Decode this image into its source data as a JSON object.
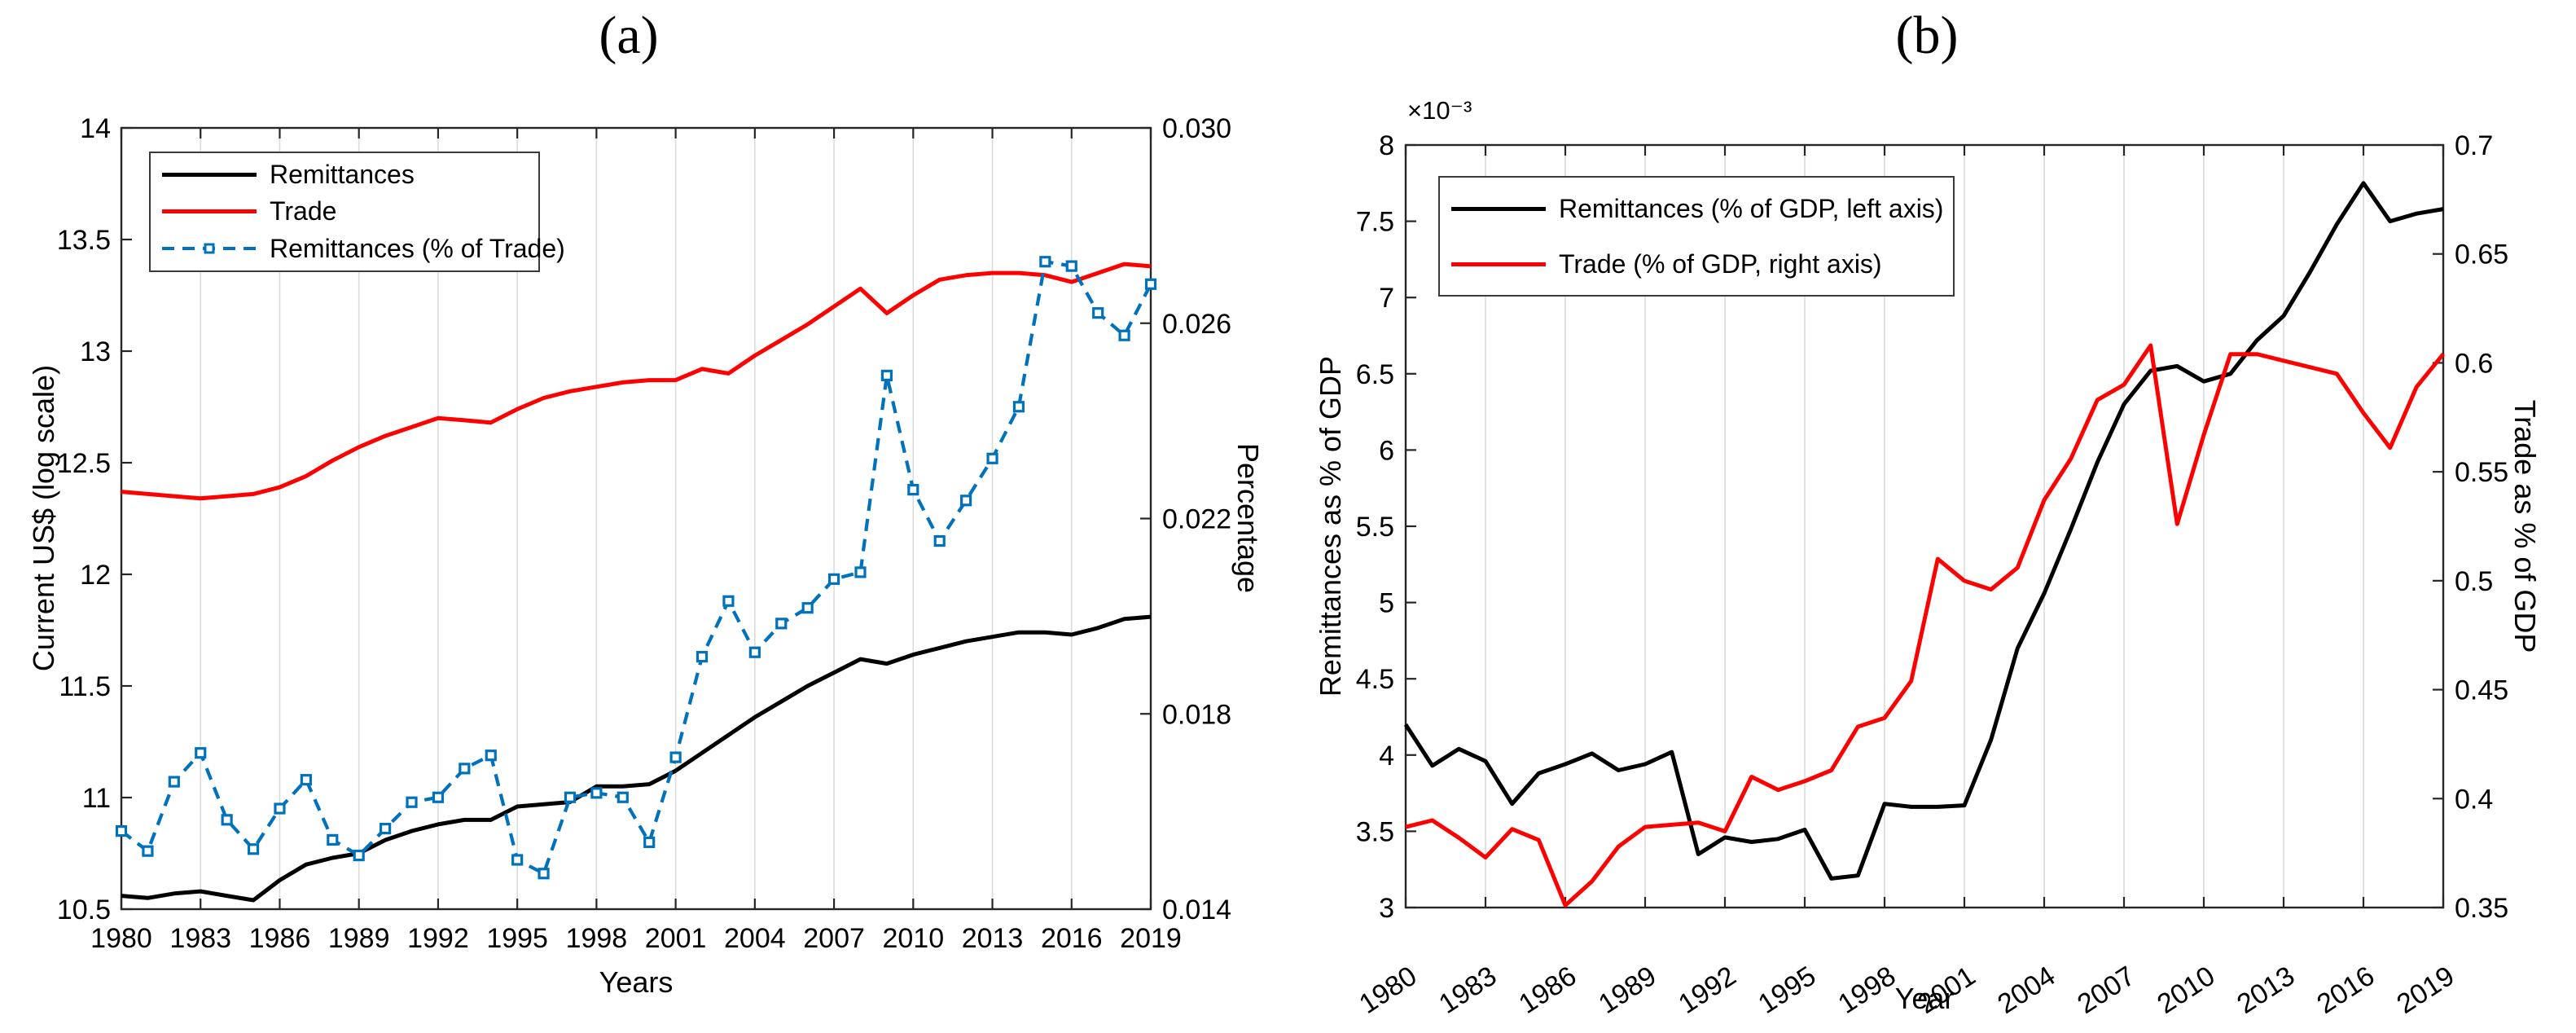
{
  "page": {
    "background": "#ffffff"
  },
  "colors": {
    "black_series": "#000000",
    "red_series": "#FF0000",
    "blue_series": "#0072BD",
    "grid": "#DBDBDB",
    "axis": "#262626"
  },
  "chart_data": [
    {
      "id": "a",
      "type": "line",
      "title": "(a)",
      "xlabel": "Years",
      "ylabel_left": "Current US$ (log scale)",
      "ylabel_right": "Percentage",
      "grid": "vertical-only",
      "legend_position": "top-left",
      "x_years": [
        1980,
        1981,
        1982,
        1983,
        1984,
        1985,
        1986,
        1987,
        1988,
        1989,
        1990,
        1991,
        1992,
        1993,
        1994,
        1995,
        1996,
        1997,
        1998,
        1999,
        2000,
        2001,
        2002,
        2003,
        2004,
        2005,
        2006,
        2007,
        2008,
        2009,
        2010,
        2011,
        2012,
        2013,
        2014,
        2015,
        2016,
        2017,
        2018,
        2019
      ],
      "xtick_labels": [
        "1980",
        "1983",
        "1986",
        "1989",
        "1992",
        "1995",
        "1998",
        "2001",
        "2004",
        "2007",
        "2010",
        "2013",
        "2016",
        "2019"
      ],
      "ylim_left": [
        10.5,
        14
      ],
      "ytick_labels_left": [
        "14",
        "13.5",
        "13",
        "12.5",
        "12",
        "11.5",
        "11",
        "10.5"
      ],
      "ylim_right": [
        0.014,
        0.03
      ],
      "ytick_labels_right": [
        "0.030",
        "0.026",
        "0.022",
        "0.018",
        "0.014"
      ],
      "series": [
        {
          "name": "Remittances",
          "axis": "left",
          "color": "#000000",
          "style": "solid",
          "values": [
            10.56,
            10.55,
            10.57,
            10.58,
            10.56,
            10.54,
            10.63,
            10.7,
            10.73,
            10.75,
            10.81,
            10.85,
            10.88,
            10.9,
            10.9,
            10.96,
            10.97,
            10.98,
            11.05,
            11.05,
            11.06,
            11.12,
            11.2,
            11.28,
            11.36,
            11.43,
            11.5,
            11.56,
            11.62,
            11.6,
            11.64,
            11.67,
            11.7,
            11.72,
            11.74,
            11.74,
            11.73,
            11.76,
            11.8,
            11.81
          ]
        },
        {
          "name": "Trade",
          "axis": "left",
          "color": "#FF0000",
          "style": "solid",
          "values": [
            12.37,
            12.36,
            12.35,
            12.34,
            12.35,
            12.36,
            12.39,
            12.44,
            12.51,
            12.57,
            12.62,
            12.66,
            12.7,
            12.69,
            12.68,
            12.74,
            12.79,
            12.82,
            12.84,
            12.86,
            12.87,
            12.87,
            12.92,
            12.9,
            12.98,
            13.05,
            13.12,
            13.2,
            13.28,
            13.17,
            13.25,
            13.32,
            13.34,
            13.35,
            13.35,
            13.34,
            13.31,
            13.35,
            13.39,
            13.38
          ]
        },
        {
          "name": "Remittances (% of Trade)",
          "axis": "right",
          "color": "#0072BD",
          "style": "dashed",
          "marker": "square",
          "values": [
            0.0156,
            0.01519,
            0.01661,
            0.0172,
            0.01583,
            0.01523,
            0.01606,
            0.01665,
            0.01542,
            0.0151,
            0.01565,
            0.01619,
            0.01629,
            0.01688,
            0.01715,
            0.01501,
            0.01473,
            0.01629,
            0.01638,
            0.01629,
            0.01537,
            0.01711,
            0.01917,
            0.02031,
            0.01926,
            0.01985,
            0.02017,
            0.02076,
            0.0209,
            0.02493,
            0.02259,
            0.02154,
            0.02237,
            0.02323,
            0.02429,
            0.02726,
            0.02717,
            0.02621,
            0.02575,
            0.0268
          ]
        }
      ]
    },
    {
      "id": "b",
      "type": "line",
      "title": "(b)",
      "xlabel": "Year",
      "ylabel_left": "Remittances as % of GDP",
      "ylabel_right": "Trade as % of GDP",
      "left_axis_multiplier": "×10⁻³",
      "grid": "vertical-only",
      "legend_position": "top-left",
      "xtick_rotation_deg": -33,
      "x_years": [
        1980,
        1981,
        1982,
        1983,
        1984,
        1985,
        1986,
        1987,
        1988,
        1989,
        1990,
        1991,
        1992,
        1993,
        1994,
        1995,
        1996,
        1997,
        1998,
        1999,
        2000,
        2001,
        2002,
        2003,
        2004,
        2005,
        2006,
        2007,
        2008,
        2009,
        2010,
        2011,
        2012,
        2013,
        2014,
        2015,
        2016,
        2017,
        2018,
        2019
      ],
      "xtick_labels": [
        "1980",
        "1983",
        "1986",
        "1989",
        "1992",
        "1995",
        "1998",
        "2001",
        "2004",
        "2007",
        "2010",
        "2013",
        "2016",
        "2019"
      ],
      "ylim_left": [
        3,
        8
      ],
      "ytick_labels_left": [
        "8",
        "7.5",
        "7",
        "6.5",
        "6",
        "5.5",
        "5",
        "4.5",
        "4",
        "3.5",
        "3"
      ],
      "ylim_right": [
        0.35,
        0.7
      ],
      "ytick_labels_right": [
        "0.7",
        "0.65",
        "0.6",
        "0.55",
        "0.5",
        "0.45",
        "0.4",
        "0.35"
      ],
      "series": [
        {
          "name": "Remittances (% of GDP, left axis)",
          "axis": "left",
          "color": "#000000",
          "style": "solid",
          "values": [
            4.2,
            3.93,
            4.04,
            3.96,
            3.68,
            3.88,
            3.94,
            4.01,
            3.9,
            3.94,
            4.02,
            3.35,
            3.46,
            3.43,
            3.45,
            3.51,
            3.19,
            3.21,
            3.68,
            3.66,
            3.66,
            3.67,
            4.1,
            4.7,
            5.06,
            5.48,
            5.92,
            6.3,
            6.52,
            6.55,
            6.45,
            6.5,
            6.72,
            6.88,
            7.17,
            7.48,
            7.75,
            7.5,
            7.55,
            7.58
          ]
        },
        {
          "name": "Trade (% of GDP, right axis)",
          "axis": "right",
          "color": "#FF0000",
          "style": "solid",
          "values": [
            0.387,
            0.39,
            0.382,
            0.373,
            0.386,
            0.381,
            0.351,
            0.362,
            0.378,
            0.387,
            0.388,
            0.389,
            0.385,
            0.41,
            0.404,
            0.408,
            0.413,
            0.433,
            0.437,
            0.454,
            0.51,
            0.5,
            0.496,
            0.506,
            0.537,
            0.556,
            0.583,
            0.59,
            0.608,
            0.526,
            0.567,
            0.604,
            0.604,
            0.601,
            0.598,
            0.595,
            0.577,
            0.561,
            0.589,
            0.604
          ]
        }
      ]
    }
  ]
}
